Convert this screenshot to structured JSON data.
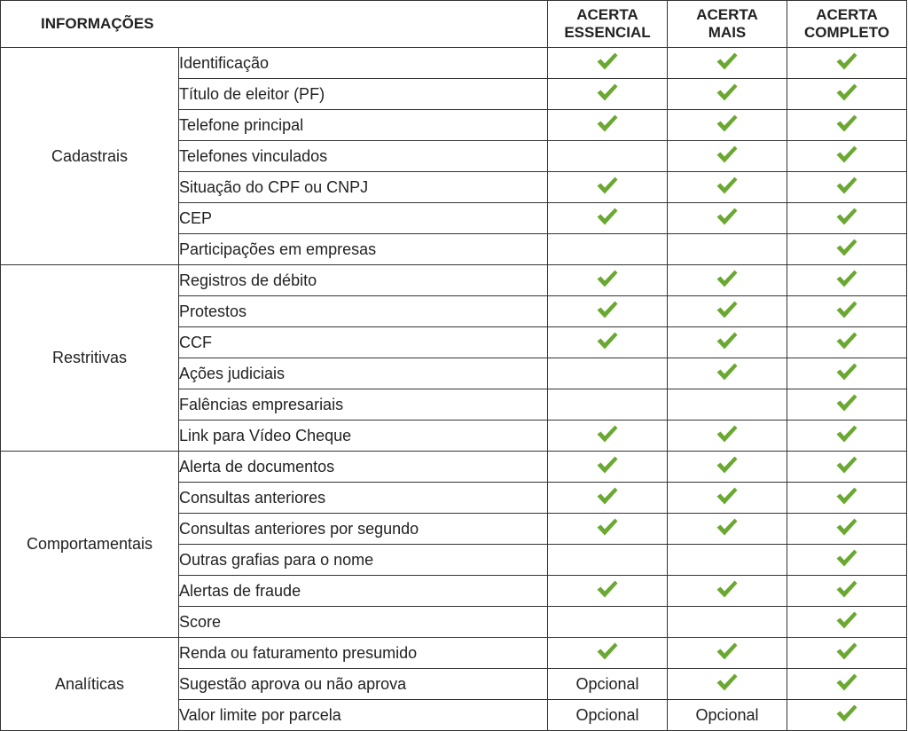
{
  "header": {
    "info": "INFORMAÇÕES",
    "plans": [
      [
        "ACERTA",
        "ESSENCIAL"
      ],
      [
        "ACERTA",
        "MAIS"
      ],
      [
        "ACERTA",
        "COMPLETO"
      ]
    ]
  },
  "check_color": "#6aa832",
  "icons": {
    "included": "checkmark-icon"
  },
  "groups": [
    {
      "category": "Cadastrais",
      "rows": [
        {
          "label": "Identificação",
          "values": [
            "check",
            "check",
            "check"
          ]
        },
        {
          "label": "Título de eleitor (PF)",
          "values": [
            "check",
            "check",
            "check"
          ]
        },
        {
          "label": "Telefone principal",
          "values": [
            "check",
            "check",
            "check"
          ]
        },
        {
          "label": "Telefones vinculados",
          "values": [
            "",
            "check",
            "check"
          ]
        },
        {
          "label": "Situação do CPF ou CNPJ",
          "values": [
            "check",
            "check",
            "check"
          ]
        },
        {
          "label": "CEP",
          "values": [
            "check",
            "check",
            "check"
          ]
        },
        {
          "label": "Participações em empresas",
          "values": [
            "",
            "",
            "check"
          ]
        }
      ]
    },
    {
      "category": "Restritivas",
      "rows": [
        {
          "label": "Registros de débito",
          "values": [
            "check",
            "check",
            "check"
          ]
        },
        {
          "label": "Protestos",
          "values": [
            "check",
            "check",
            "check"
          ]
        },
        {
          "label": "CCF",
          "values": [
            "check",
            "check",
            "check"
          ]
        },
        {
          "label": "Ações judiciais",
          "values": [
            "",
            "check",
            "check"
          ]
        },
        {
          "label": "Falências empresariais",
          "values": [
            "",
            "",
            "check"
          ]
        },
        {
          "label": "Link para Vídeo Cheque",
          "values": [
            "check",
            "check",
            "check"
          ]
        }
      ]
    },
    {
      "category": "Comportamentais",
      "rows": [
        {
          "label": "Alerta de documentos",
          "values": [
            "check",
            "check",
            "check"
          ]
        },
        {
          "label": "Consultas anteriores",
          "values": [
            "check",
            "check",
            "check"
          ]
        },
        {
          "label": "Consultas anteriores por segundo",
          "values": [
            "check",
            "check",
            "check"
          ]
        },
        {
          "label": "Outras grafias para o nome",
          "values": [
            "",
            "",
            "check"
          ]
        },
        {
          "label": "Alertas de fraude",
          "values": [
            "check",
            "check",
            "check"
          ]
        },
        {
          "label": "Score",
          "values": [
            "",
            "",
            "check"
          ]
        }
      ]
    },
    {
      "category": "Analíticas",
      "rows": [
        {
          "label": "Renda ou faturamento presumido",
          "values": [
            "check",
            "check",
            "check"
          ]
        },
        {
          "label": "Sugestão aprova ou não aprova",
          "values": [
            "Opcional",
            "check",
            "check"
          ]
        },
        {
          "label": "Valor limite por parcela",
          "values": [
            "Opcional",
            "Opcional",
            "check"
          ]
        }
      ]
    }
  ]
}
